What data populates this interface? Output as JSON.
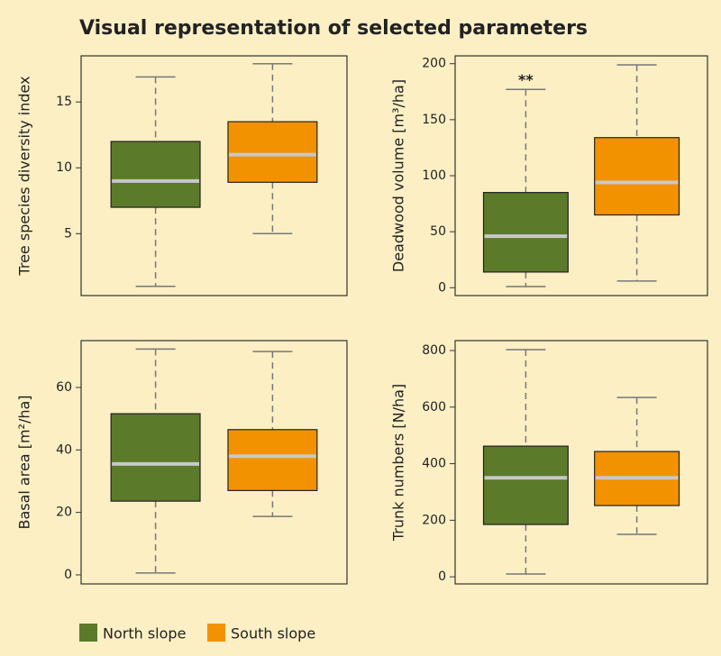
{
  "title": "Visual representation of selected parameters",
  "legend": [
    {
      "name": "North slope",
      "color": "#5b7a2a"
    },
    {
      "name": "South slope",
      "color": "#f39200"
    }
  ],
  "chart_data": [
    {
      "type": "box",
      "ylabel": "Tree species diversity index",
      "ylim": [
        0.3,
        18.5
      ],
      "yticks": [
        5,
        10,
        15
      ],
      "boxes": [
        {
          "min": 1,
          "q1": 7,
          "median": 9,
          "q3": 12,
          "max": 16.9
        },
        {
          "min": 5,
          "q1": 8.9,
          "median": 11,
          "q3": 13.5,
          "max": 17.9
        }
      ]
    },
    {
      "type": "box",
      "ylabel": "Deadwood volume  [m³/ha]",
      "ylim": [
        -7,
        207
      ],
      "yticks": [
        0,
        50,
        100,
        150,
        200
      ],
      "annotation": "**",
      "boxes": [
        {
          "min": 1,
          "q1": 14,
          "median": 46,
          "q3": 85,
          "max": 177
        },
        {
          "min": 6,
          "q1": 65,
          "median": 94,
          "q3": 134,
          "max": 199
        }
      ]
    },
    {
      "type": "box",
      "ylabel": "Basal area  [m²/ha]",
      "ylim": [
        -2.9,
        75
      ],
      "yticks": [
        0,
        20,
        40,
        60
      ],
      "boxes": [
        {
          "min": 0.6,
          "q1": 23.6,
          "median": 35.5,
          "q3": 51.6,
          "max": 72.3
        },
        {
          "min": 18.7,
          "q1": 27,
          "median": 38,
          "q3": 46.5,
          "max": 71.5
        }
      ]
    },
    {
      "type": "box",
      "ylabel": "Trunk numbers  [N/ha]",
      "ylim": [
        -25,
        835
      ],
      "yticks": [
        0,
        200,
        400,
        600,
        800
      ],
      "boxes": [
        {
          "min": 10,
          "q1": 185,
          "median": 350,
          "q3": 462,
          "max": 803
        },
        {
          "min": 150,
          "q1": 252,
          "median": 350,
          "q3": 443,
          "max": 634
        }
      ]
    }
  ]
}
